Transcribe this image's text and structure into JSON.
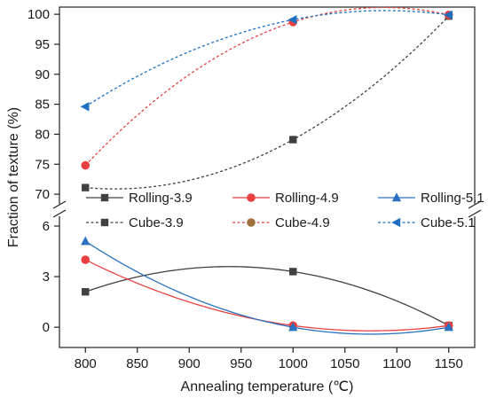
{
  "chart_data": {
    "type": "line",
    "xlabel": "Annealing temperature (℃)",
    "ylabel": "Fraction of texture (%)",
    "x_ticks": [
      800,
      850,
      900,
      950,
      1000,
      1050,
      1100,
      1150
    ],
    "xlim": [
      775,
      1175
    ],
    "axis_break": true,
    "upper_panel": {
      "ylim": [
        67.5,
        101.2
      ],
      "y_ticks": [
        70,
        75,
        80,
        85,
        90,
        95,
        100
      ]
    },
    "lower_panel": {
      "ylim": [
        -1.2,
        7.0
      ],
      "y_ticks": [
        0,
        3,
        6
      ]
    },
    "legend_placement": "center, spanning the axis break, 3 columns",
    "series": [
      {
        "name": "Rolling-3.9",
        "panel": "lower",
        "x": [
          800,
          1000,
          1150
        ],
        "y": [
          2.1,
          3.3,
          0.1
        ],
        "color": "#404040",
        "marker": "square",
        "dash": "solid"
      },
      {
        "name": "Rolling-4.9",
        "panel": "lower",
        "x": [
          800,
          1000,
          1150
        ],
        "y": [
          4.0,
          0.1,
          0.1
        ],
        "color": "#e84040",
        "marker": "circle",
        "dash": "solid"
      },
      {
        "name": "Rolling-5.1",
        "panel": "lower",
        "x": [
          800,
          1000,
          1150
        ],
        "y": [
          5.1,
          0.0,
          0.0
        ],
        "color": "#2a72c0",
        "marker": "triangle",
        "dash": "solid"
      },
      {
        "name": "Cube-3.9",
        "panel": "upper",
        "x": [
          800,
          1000,
          1150
        ],
        "y": [
          71.1,
          79.1,
          99.7
        ],
        "color": "#404040",
        "marker": "square",
        "dash": "dashed"
      },
      {
        "name": "Cube-4.9",
        "panel": "upper",
        "x": [
          800,
          1000,
          1150
        ],
        "y": [
          74.8,
          98.7,
          99.9
        ],
        "color": "#e84040",
        "marker": "circle",
        "dash": "dashed"
      },
      {
        "name": "Cube-5.1",
        "panel": "upper",
        "x": [
          800,
          1000,
          1150
        ],
        "y": [
          84.6,
          99.1,
          99.9
        ],
        "color": "#1f6fc0",
        "marker": "triangle-left",
        "dash": "dashed"
      }
    ],
    "legend": [
      {
        "label": "Rolling-3.9",
        "color": "#404040",
        "marker": "square",
        "dash": "solid",
        "marker_color": "#404040"
      },
      {
        "label": "Rolling-4.9",
        "color": "#e84040",
        "marker": "circle",
        "dash": "solid",
        "marker_color": "#e84040"
      },
      {
        "label": "Rolling-5.1",
        "color": "#2a72c0",
        "marker": "triangle",
        "dash": "solid",
        "marker_color": "#2a72c0"
      },
      {
        "label": "Cube-3.9",
        "color": "#404040",
        "marker": "square",
        "dash": "dashed",
        "marker_color": "#404040"
      },
      {
        "label": "Cube-4.9",
        "color": "#e84040",
        "marker": "circle",
        "dash": "dashed",
        "marker_color": "#a0703a"
      },
      {
        "label": "Cube-5.1",
        "color": "#1f6fc0",
        "marker": "triangle-left",
        "dash": "dashed",
        "marker_color": "#1f6fc0"
      }
    ]
  }
}
